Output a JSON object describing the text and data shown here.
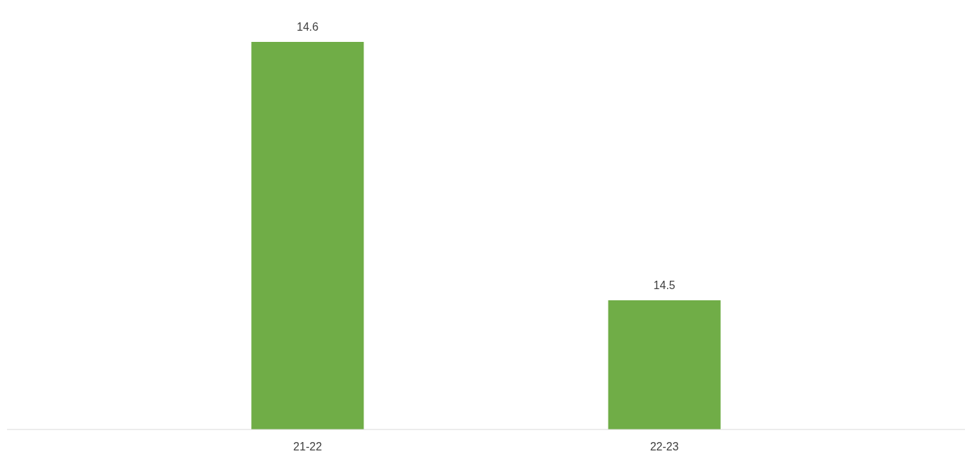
{
  "chart_data": {
    "type": "bar",
    "categories": [
      "21-22",
      "22-23"
    ],
    "values": [
      14.6,
      14.5
    ],
    "color": "#70ad47",
    "ylim": [
      14.45,
      14.6
    ],
    "data_labels": true,
    "tick_labels": "x"
  }
}
